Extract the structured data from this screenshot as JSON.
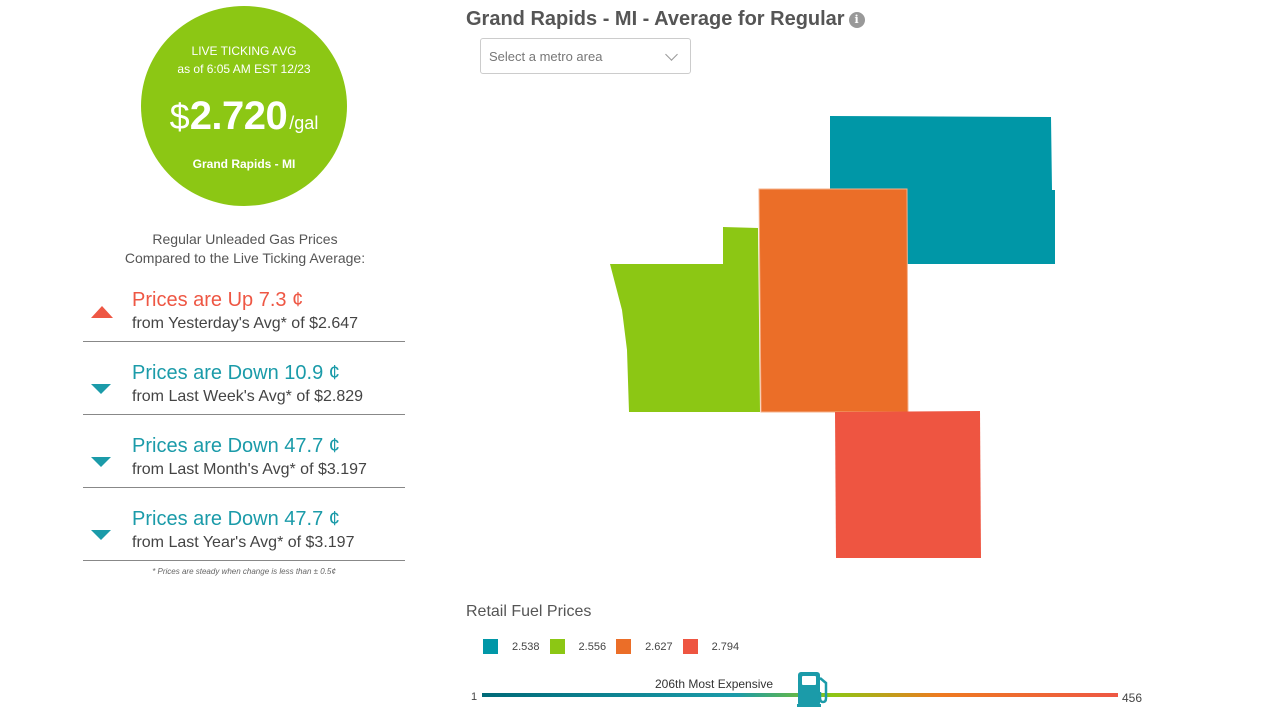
{
  "live_avg": {
    "label_line1": "LIVE TICKING AVG",
    "label_line2": "as of   6:05 AM EST 12/23",
    "currency": "$",
    "price": "2.720",
    "unit": "/gal",
    "city": "Grand Rapids - MI",
    "color": "#8cc714"
  },
  "compare": {
    "heading_line1": "Regular Unleaded Gas Prices",
    "heading_line2": "Compared to the Live Ticking Average:",
    "items": [
      {
        "direction": "up",
        "title": "Prices are Up 7.3 ¢",
        "sub": "from Yesterday's Avg* of $2.647"
      },
      {
        "direction": "down",
        "title": "Prices are Down 10.9 ¢",
        "sub": "from Last Week's Avg* of $2.829"
      },
      {
        "direction": "down",
        "title": "Prices are Down 47.7 ¢",
        "sub": "from Last Month's Avg* of $3.197"
      },
      {
        "direction": "down",
        "title": "Prices are Down 47.7 ¢",
        "sub": "from Last Year's Avg* of $3.197"
      }
    ],
    "footnote": "* Prices are steady when change is less than ± 0.5¢"
  },
  "map": {
    "title": "Grand Rapids - MI - Average for Regular",
    "info_icon": "info-icon",
    "select_placeholder": "Select a metro area",
    "colors": {
      "teal": "#0097a7",
      "green": "#8cc714",
      "orange": "#eb6e28",
      "red": "#ee5541"
    }
  },
  "legend": {
    "title": "Retail Fuel Prices",
    "items": [
      {
        "value": "2.538",
        "color": "#0097a7"
      },
      {
        "value": "2.556",
        "color": "#8cc714"
      },
      {
        "value": "2.627",
        "color": "#eb6e28"
      },
      {
        "value": "2.794",
        "color": "#ee5541"
      }
    ]
  },
  "rank": {
    "min": "1",
    "max": "456",
    "label": "206th Most Expensive",
    "position": 206,
    "icon": "gas-pump-icon"
  }
}
